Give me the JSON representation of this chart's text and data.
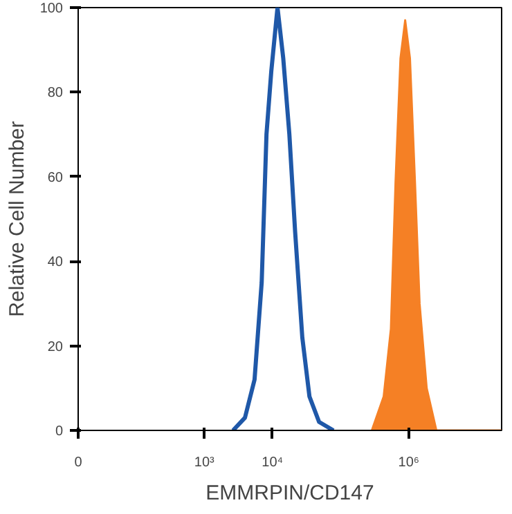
{
  "chart_data": {
    "type": "line",
    "xlabel": "EMMRPIN/CD147",
    "ylabel": "Relative Cell Number",
    "log": "x",
    "xlim": [
      0,
      23000000
    ],
    "ylim": [
      0,
      100
    ],
    "xticks": [
      {
        "value": 0,
        "label": "0"
      },
      {
        "value": 1000,
        "label": "10³"
      },
      {
        "value": 10000,
        "label": "10⁴"
      },
      {
        "value": 1000000,
        "label": "10⁶"
      }
    ],
    "yticks": [
      0,
      20,
      40,
      60,
      80,
      100
    ],
    "series": [
      {
        "color": "#1f58a8",
        "x": [
          2640,
          3950,
          5460,
          6950,
          8170,
          9620,
          11860,
          14400,
          17700,
          21500,
          27400,
          34900,
          48300,
          78500
        ],
        "values": [
          0,
          3,
          12,
          35,
          70,
          85,
          100,
          88,
          70,
          47,
          22,
          8,
          2,
          0
        ]
      },
      {
        "type": "area",
        "color": "#f58025",
        "x": [
          287000,
          428000,
          546000,
          640000,
          755000,
          885000,
          1040000,
          1230000,
          1440000,
          1830000,
          2540000,
          23000000
        ],
        "values": [
          0,
          8,
          24,
          59,
          88,
          97,
          88,
          59,
          30,
          10,
          0,
          0
        ]
      }
    ]
  }
}
